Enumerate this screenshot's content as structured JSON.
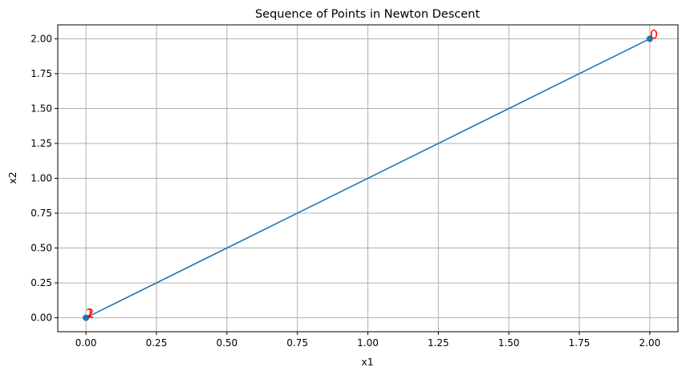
{
  "chart_data": {
    "type": "line",
    "title": "Sequence of Points in Newton Descent",
    "xlabel": "x1",
    "ylabel": "x2",
    "xlim": [
      -0.1,
      2.1
    ],
    "ylim": [
      -0.1,
      2.1
    ],
    "xticks": [
      0.0,
      0.25,
      0.5,
      0.75,
      1.0,
      1.25,
      1.5,
      1.75,
      2.0
    ],
    "xtick_labels": [
      "0.00",
      "0.25",
      "0.50",
      "0.75",
      "1.00",
      "1.25",
      "1.50",
      "1.75",
      "2.00"
    ],
    "yticks": [
      0.0,
      0.25,
      0.5,
      0.75,
      1.0,
      1.25,
      1.5,
      1.75,
      2.0
    ],
    "ytick_labels": [
      "0.00",
      "0.25",
      "0.50",
      "0.75",
      "1.00",
      "1.25",
      "1.50",
      "1.75",
      "2.00"
    ],
    "grid": true,
    "series": [
      {
        "x": [
          2.0,
          0.0,
          0.0
        ],
        "y": [
          2.0,
          0.0,
          0.0
        ],
        "marker": "circle"
      }
    ],
    "annotations": [
      {
        "text": "0",
        "x": 2.0,
        "y": 2.0
      },
      {
        "text": "1",
        "x": 0.0,
        "y": 0.0
      },
      {
        "text": "2",
        "x": 0.0,
        "y": 0.0
      }
    ],
    "colors": {
      "line": "#1f77b4",
      "marker": "#1f77b4",
      "annotation": "#ff0000",
      "grid": "#b0b0b0"
    }
  }
}
